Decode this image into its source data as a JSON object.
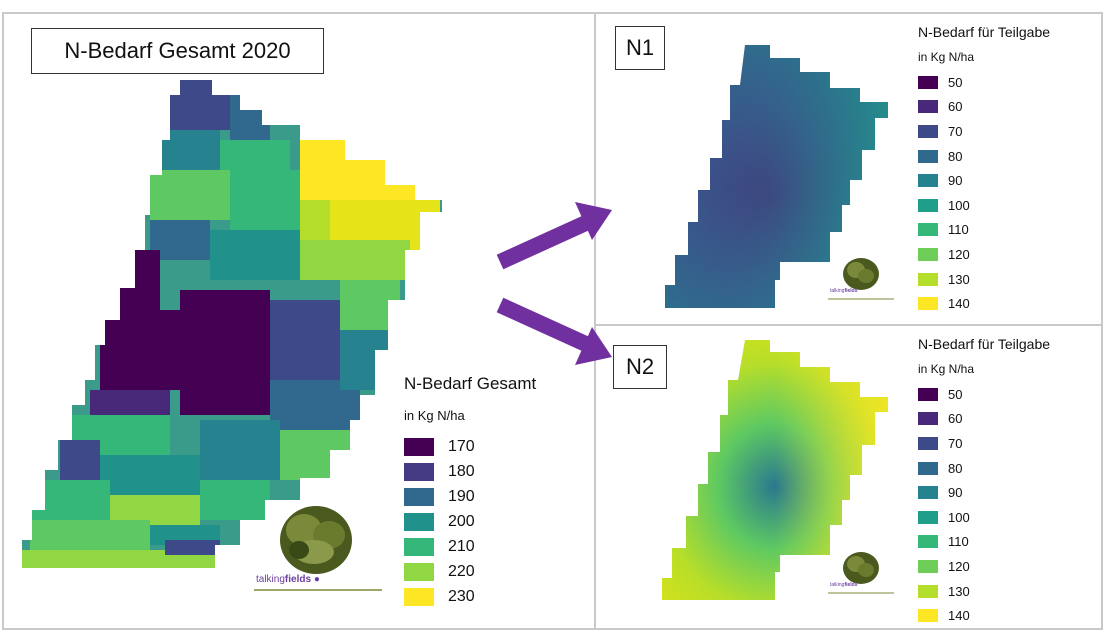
{
  "main_map": {
    "title": "N-Bedarf Gesamt 2020",
    "legend": {
      "title": "N-Bedarf Gesamt",
      "unit": "in Kg N/ha",
      "items": [
        {
          "label": "170",
          "color": "#440154"
        },
        {
          "label": "180",
          "color": "#443983"
        },
        {
          "label": "190",
          "color": "#31688e"
        },
        {
          "label": "200",
          "color": "#21918c"
        },
        {
          "label": "210",
          "color": "#35b779"
        },
        {
          "label": "220",
          "color": "#90d743"
        },
        {
          "label": "230",
          "color": "#fde725"
        }
      ]
    }
  },
  "n1_map": {
    "title": "N1",
    "legend": {
      "title": "N-Bedarf für Teilgabe",
      "unit": "in Kg N/ha",
      "items": [
        {
          "label": "50",
          "color": "#440154"
        },
        {
          "label": "60",
          "color": "#482878"
        },
        {
          "label": "70",
          "color": "#3e4989"
        },
        {
          "label": "80",
          "color": "#31688e"
        },
        {
          "label": "90",
          "color": "#26828e"
        },
        {
          "label": "100",
          "color": "#1f9e89"
        },
        {
          "label": "110",
          "color": "#35b779"
        },
        {
          "label": "120",
          "color": "#6ece58"
        },
        {
          "label": "130",
          "color": "#b5de2b"
        },
        {
          "label": "140",
          "color": "#fde725"
        }
      ]
    }
  },
  "n2_map": {
    "title": "N2",
    "legend": {
      "title": "N-Bedarf für Teilgabe",
      "unit": "in Kg N/ha",
      "items": [
        {
          "label": "50",
          "color": "#440154"
        },
        {
          "label": "60",
          "color": "#482878"
        },
        {
          "label": "70",
          "color": "#3e4989"
        },
        {
          "label": "80",
          "color": "#31688e"
        },
        {
          "label": "90",
          "color": "#26828e"
        },
        {
          "label": "100",
          "color": "#1f9e89"
        },
        {
          "label": "110",
          "color": "#35b779"
        },
        {
          "label": "120",
          "color": "#6ece58"
        },
        {
          "label": "130",
          "color": "#b5de2b"
        },
        {
          "label": "140",
          "color": "#fde725"
        }
      ]
    }
  },
  "logo": {
    "text_pre": "talking",
    "text_post": "fields",
    "icon": "lettuce-logo"
  },
  "arrow_color": "#7030a0"
}
